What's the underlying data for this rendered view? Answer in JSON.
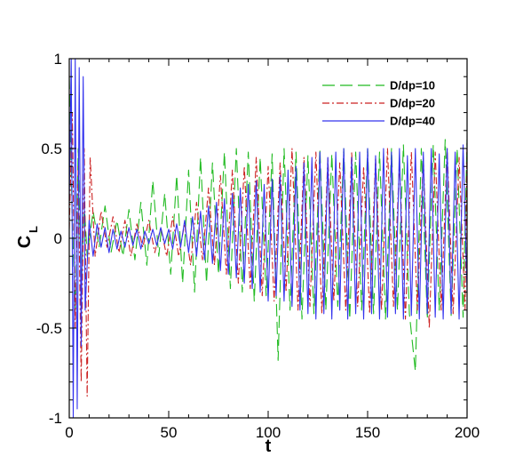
{
  "chart_data": {
    "type": "line",
    "xlabel": "t",
    "ylabel_main": "C",
    "ylabel_sub": "L",
    "xlim": [
      0,
      200
    ],
    "ylim": [
      -1,
      1
    ],
    "x_ticks": [
      0,
      50,
      100,
      150,
      200
    ],
    "x_tick_labels": [
      "0",
      "50",
      "100",
      "150",
      "200"
    ],
    "y_ticks": [
      -1,
      -0.5,
      0,
      0.5,
      1
    ],
    "y_tick_labels": [
      "-1",
      "-0.5",
      "0",
      "0.5",
      "1"
    ],
    "grid": false,
    "legend_position": "top-right",
    "series": [
      {
        "name": "D/dp=10",
        "color": "#22bb22",
        "dash": "dashed",
        "x": [
          0,
          1.5,
          3,
          4.5,
          6,
          7.5,
          9,
          12,
          15,
          18,
          21,
          24,
          27,
          30,
          33,
          36,
          39,
          42,
          45,
          48,
          51,
          54,
          57,
          60,
          63,
          66,
          69,
          72,
          75,
          78,
          81,
          84,
          87,
          90,
          93,
          96,
          99,
          102,
          105,
          108,
          111,
          114,
          117,
          120,
          123,
          126,
          129,
          132,
          135,
          138,
          141,
          144,
          147,
          150,
          153,
          156,
          159,
          162,
          165,
          168,
          171,
          174,
          177,
          180,
          183,
          186,
          189,
          192,
          195,
          198,
          200
        ],
        "y": [
          0.9,
          0.1,
          -0.4,
          0.5,
          -0.3,
          0.2,
          -0.1,
          0.15,
          -0.05,
          0.18,
          -0.08,
          0.1,
          -0.1,
          0.16,
          -0.12,
          0.2,
          -0.15,
          0.32,
          -0.1,
          0.25,
          -0.2,
          0.35,
          -0.25,
          0.38,
          -0.3,
          0.45,
          -0.25,
          0.42,
          -0.2,
          0.48,
          -0.28,
          0.5,
          -0.3,
          0.48,
          -0.35,
          0.45,
          -0.32,
          0.47,
          -0.68,
          0.5,
          -0.4,
          0.48,
          -0.45,
          0.46,
          -0.42,
          0.5,
          -0.4,
          0.47,
          -0.38,
          0.5,
          -0.45,
          0.48,
          -0.4,
          0.5,
          -0.42,
          0.48,
          -0.45,
          0.5,
          -0.4,
          0.52,
          -0.42,
          -0.74,
          0.5,
          -0.45,
          0.52,
          -0.4,
          0.55,
          -0.43,
          0.5,
          -0.44,
          0.55
        ]
      },
      {
        "name": "D/dp=20",
        "color": "#cc2222",
        "dash": "dashdot",
        "x": [
          0,
          1.5,
          3,
          4.5,
          6,
          7.5,
          9,
          10.5,
          13,
          16,
          19,
          22,
          25,
          28,
          31,
          34,
          37,
          40,
          43,
          46,
          49,
          52,
          55,
          58,
          61,
          64,
          67,
          70,
          73,
          76,
          79,
          82,
          85,
          88,
          91,
          94,
          97,
          100,
          103,
          106,
          109,
          112,
          115,
          118,
          121,
          124,
          127,
          130,
          133,
          136,
          139,
          142,
          145,
          148,
          151,
          154,
          157,
          160,
          163,
          166,
          169,
          172,
          175,
          178,
          181,
          184,
          187,
          190,
          193,
          196,
          199,
          200
        ],
        "y": [
          0.05,
          0.7,
          -0.5,
          0.4,
          -0.8,
          0.5,
          -0.88,
          0.45,
          -0.1,
          0.15,
          -0.05,
          0.12,
          -0.08,
          0.1,
          -0.1,
          0.08,
          -0.05,
          0.1,
          -0.08,
          0.06,
          -0.1,
          0.12,
          -0.1,
          0.08,
          -0.15,
          0.2,
          -0.12,
          0.28,
          -0.15,
          0.35,
          -0.2,
          0.38,
          -0.25,
          0.4,
          -0.28,
          0.45,
          -0.32,
          0.4,
          -0.35,
          0.42,
          -0.3,
          0.5,
          -0.4,
          0.45,
          -0.38,
          0.48,
          -0.42,
          0.45,
          -0.35,
          0.42,
          -0.4,
          0.48,
          -0.38,
          0.4,
          -0.42,
          0.45,
          -0.4,
          0.5,
          -0.38,
          0.42,
          -0.45,
          0.48,
          -0.4,
          0.45,
          -0.5,
          0.48,
          -0.4,
          0.5,
          -0.42,
          0.45,
          -0.4,
          0.55
        ]
      },
      {
        "name": "D/dp=40",
        "color": "#3333ee",
        "dash": "solid",
        "x": [
          0,
          1,
          2,
          3,
          4,
          5,
          6,
          7,
          8,
          10,
          12,
          14,
          16,
          18,
          20,
          22,
          24,
          26,
          28,
          30,
          32,
          34,
          36,
          38,
          40,
          42,
          44,
          46,
          48,
          50,
          52,
          54,
          56,
          58,
          60,
          62,
          64,
          66,
          68,
          70,
          72,
          74,
          76,
          78,
          80,
          82,
          84,
          86,
          88,
          90,
          92,
          94,
          96,
          98,
          100,
          102,
          104,
          106,
          108,
          110,
          112,
          114,
          116,
          118,
          120,
          122,
          124,
          126,
          128,
          130,
          132,
          134,
          136,
          138,
          140,
          142,
          144,
          146,
          148,
          150,
          152,
          154,
          156,
          158,
          160,
          162,
          164,
          166,
          168,
          170,
          172,
          174,
          176,
          178,
          180,
          182,
          184,
          186,
          188,
          190,
          192,
          194,
          196,
          198,
          200
        ],
        "y": [
          0.2,
          1.0,
          -1.0,
          1.0,
          -0.95,
          0.95,
          -0.6,
          0.9,
          -0.4,
          0.1,
          -0.1,
          0.08,
          -0.05,
          0.06,
          -0.08,
          0.05,
          -0.06,
          0.04,
          -0.05,
          0.06,
          -0.04,
          0.05,
          -0.06,
          0.04,
          -0.03,
          0.05,
          -0.04,
          0.06,
          -0.03,
          0.05,
          -0.06,
          0.08,
          -0.05,
          0.1,
          -0.08,
          0.12,
          -0.1,
          0.15,
          -0.12,
          0.18,
          -0.14,
          0.2,
          -0.18,
          0.22,
          -0.2,
          0.25,
          -0.22,
          0.28,
          -0.25,
          0.3,
          -0.28,
          0.32,
          -0.3,
          0.3,
          -0.35,
          0.33,
          -0.32,
          0.35,
          -0.35,
          0.38,
          -0.38,
          0.4,
          -0.4,
          0.42,
          -0.42,
          0.45,
          -0.45,
          0.48,
          -0.42,
          0.45,
          -0.45,
          0.48,
          -0.4,
          0.5,
          -0.45,
          0.45,
          -0.42,
          0.48,
          -0.45,
          0.5,
          -0.42,
          0.46,
          -0.45,
          0.5,
          -0.44,
          0.48,
          -0.42,
          0.5,
          -0.45,
          0.46,
          -0.43,
          0.5,
          -0.45,
          0.48,
          -0.42,
          0.5,
          -0.44,
          0.47,
          -0.45,
          0.5,
          -0.42,
          0.48,
          -0.45,
          0.52,
          -0.3
        ]
      }
    ]
  }
}
